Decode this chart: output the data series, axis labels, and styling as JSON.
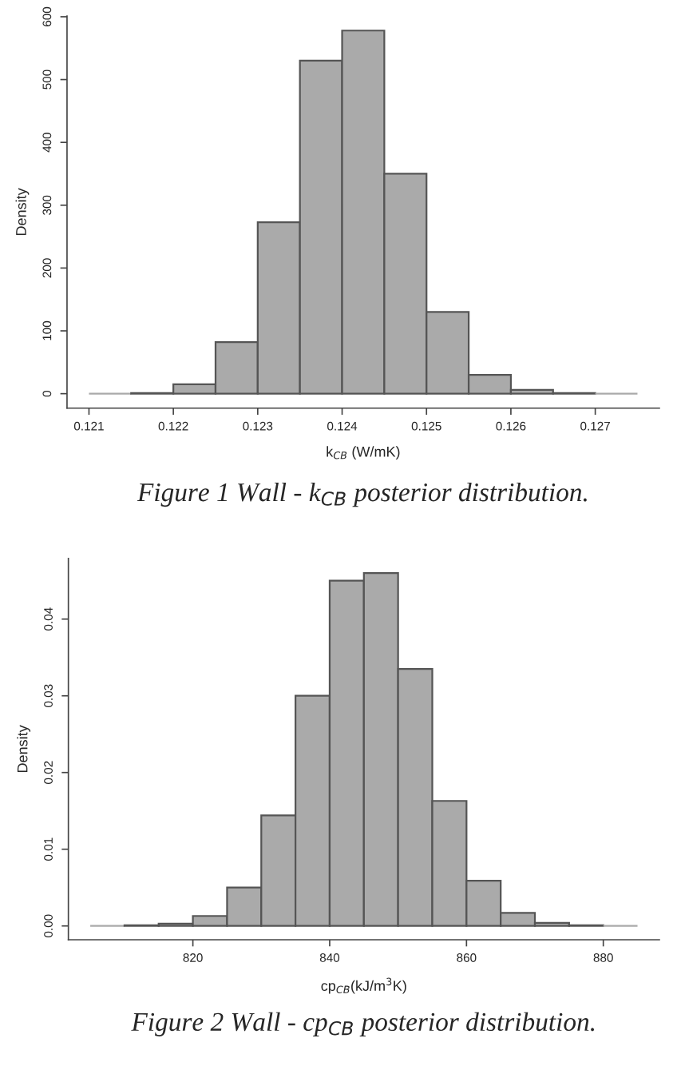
{
  "chart_data": [
    {
      "type": "histogram",
      "bins": [
        0.121,
        0.1215,
        0.122,
        0.1225,
        0.123,
        0.1235,
        0.124,
        0.1245,
        0.125,
        0.1255,
        0.126,
        0.1265,
        0.127,
        0.1275
      ],
      "values": [
        0,
        1,
        15,
        82,
        273,
        530,
        578,
        350,
        130,
        30,
        6,
        1,
        0
      ],
      "color": "#aaaaaa",
      "xlim": [
        0.12074,
        0.12776
      ],
      "ylim": [
        -23,
        601
      ],
      "xticks": [
        0.121,
        0.122,
        0.123,
        0.124,
        0.125,
        0.126,
        0.127
      ],
      "yticks": [
        0,
        100,
        200,
        300,
        400,
        500,
        600
      ],
      "xlabel": "k$_{CB}$ (W/mK)",
      "ylabel": "Density",
      "annotations": [
        "Figure 1 Wall - k$_{CB}$ posterior distribution."
      ]
    },
    {
      "type": "histogram",
      "bins": [
        805,
        810,
        815,
        820,
        825,
        830,
        835,
        840,
        845,
        850,
        855,
        860,
        865,
        870,
        875,
        880,
        885
      ],
      "values": [
        0,
        0.0001,
        0.0003,
        0.0013,
        0.005,
        0.0144,
        0.03,
        0.045,
        0.046,
        0.0335,
        0.0163,
        0.0059,
        0.0017,
        0.0004,
        0.0001,
        0
      ],
      "color": "#aaaaaa",
      "xlim": [
        801.8,
        888.2
      ],
      "ylim": [
        -0.0018,
        0.0479
      ],
      "xticks": [
        820,
        840,
        860,
        880
      ],
      "yticks": [
        {
          "value": 0,
          "label": "0.00"
        },
        {
          "value": 0.01,
          "label": "0.01"
        },
        {
          "value": 0.02,
          "label": "0.02"
        },
        {
          "value": 0.03,
          "label": "0.03"
        },
        {
          "value": 0.04,
          "label": "0.04"
        }
      ],
      "xlabel": "cp$_{CB}$(kJ/m$^{3}$K)",
      "ylabel": "Density",
      "annotations": [
        "Figure 2 Wall - cp$_{CB}$ posterior distribution."
      ]
    }
  ]
}
